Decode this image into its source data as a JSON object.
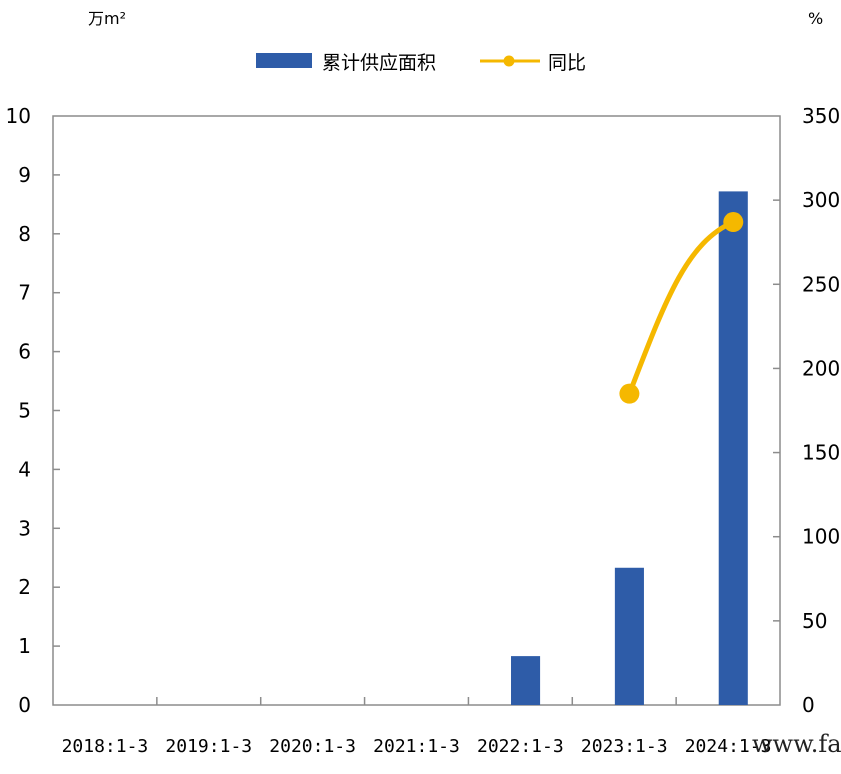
{
  "chart_data": {
    "type": "bar",
    "categories": [
      "2018:1-3",
      "2019:1-3",
      "2020:1-3",
      "2021:1-3",
      "2022:1-3",
      "2023:1-3",
      "2024:1-3"
    ],
    "series": [
      {
        "name": "累计供应面积",
        "type": "bar",
        "axis": "left",
        "color": "#2e5ca8",
        "values": [
          0,
          0,
          0,
          0,
          0.83,
          2.33,
          8.72
        ]
      },
      {
        "name": "同比",
        "type": "line",
        "axis": "right",
        "color": "#f5b800",
        "values": [
          null,
          null,
          null,
          null,
          null,
          185,
          287
        ]
      }
    ],
    "left_axis": {
      "unit": "万m²",
      "ylim": [
        0,
        10
      ],
      "ticks": [
        "0",
        "1",
        "2",
        "3",
        "4",
        "5",
        "6",
        "7",
        "8",
        "9",
        "10"
      ]
    },
    "right_axis": {
      "unit": "%",
      "ylim": [
        0,
        350
      ],
      "ticks": [
        "0",
        "50",
        "100",
        "150",
        "200",
        "250",
        "300",
        "350"
      ]
    },
    "legend_position": "top-center",
    "grid": false,
    "watermark": "www.far"
  }
}
